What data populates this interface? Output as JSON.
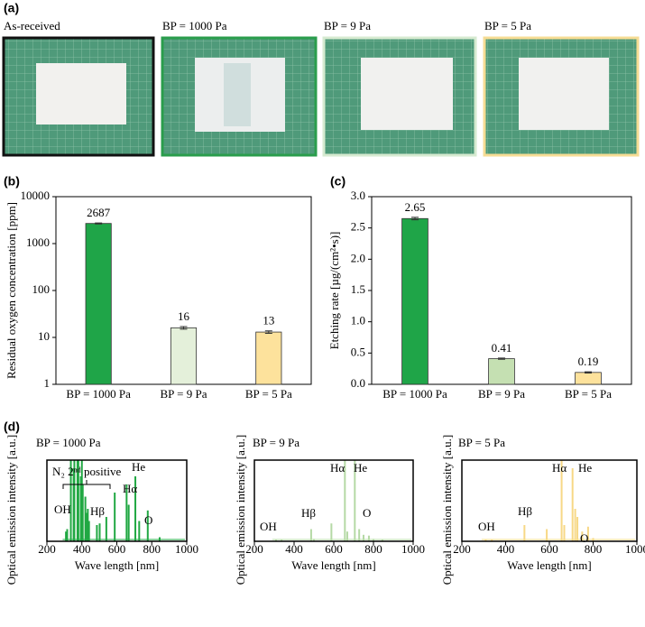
{
  "photos": {
    "panel_label": "(a)",
    "captions": [
      "As-received",
      "BP = 1000 Pa",
      "BP = 9 Pa",
      "BP = 5 Pa"
    ]
  },
  "chart_data": [
    {
      "type": "bar",
      "panel_label": "(b)",
      "y_label": "Residual oxygen concentration [ppm]",
      "categories": [
        "BP = 1000 Pa",
        "BP = 9 Pa",
        "BP = 5 Pa"
      ],
      "values": [
        2687,
        16,
        13
      ],
      "errors": [
        60,
        1,
        0.8
      ],
      "colors": [
        "#1fa548",
        "#e4f0da",
        "#fde29c"
      ],
      "log_scale": true,
      "ylim": [
        1,
        10000
      ],
      "yticks": [
        1,
        10,
        100,
        1000,
        10000
      ]
    },
    {
      "type": "bar",
      "panel_label": "(c)",
      "y_label": "Etching rate [µg/(cm²•s)]",
      "categories": [
        "BP = 1000 Pa",
        "BP = 9 Pa",
        "BP = 5 Pa"
      ],
      "values": [
        2.65,
        0.41,
        0.19
      ],
      "errors": [
        0.02,
        0.01,
        0.01
      ],
      "colors": [
        "#1fa548",
        "#c5e0b2",
        "#fde29c"
      ],
      "log_scale": false,
      "ylim": [
        0,
        3
      ],
      "yticks": [
        {
          "value": 0,
          "label": "0.0"
        },
        0.5,
        {
          "value": 1,
          "label": "1.0"
        },
        1.5,
        {
          "value": 2,
          "label": "2.0"
        },
        2.5,
        {
          "value": 3,
          "label": "3.0"
        }
      ]
    },
    {
      "type": "spectrum",
      "panel_label": "(d)",
      "title": "BP = 1000 Pa",
      "x_label": "Wave length [nm]",
      "y_label": "Optical emission intensity [a.u.]",
      "color": "#21a843",
      "annotations": [
        "OH",
        "N₂ 2ⁿᵈ positive",
        "Hβ",
        "Hα",
        "He",
        "O"
      ],
      "x": [
        309,
        316,
        337,
        353,
        357,
        375,
        380,
        394,
        400,
        405,
        420,
        427,
        434,
        441,
        486,
        502,
        540,
        588,
        656,
        668,
        706,
        728,
        777,
        845
      ],
      "values": [
        0.12,
        0.15,
        1.0,
        0.9,
        1.0,
        1.0,
        1.0,
        0.8,
        1.0,
        0.7,
        0.55,
        0.35,
        0.4,
        0.25,
        0.2,
        0.22,
        0.3,
        0.6,
        0.7,
        0.45,
        0.8,
        0.25,
        0.38,
        0.05
      ],
      "xlim": [
        200,
        1000
      ],
      "xticks": [
        200,
        400,
        600,
        800,
        1000
      ],
      "ylim": [
        0,
        1
      ]
    },
    {
      "type": "spectrum",
      "title": "BP = 9 Pa",
      "x_label": "Wave length [nm]",
      "y_label": "Optical emission intensity [a.u.]",
      "color": "#b5d9a5",
      "annotations": [
        "Hα",
        "He",
        "Hβ",
        "O",
        "OH"
      ],
      "x": [
        309,
        337,
        486,
        500,
        588,
        656,
        668,
        706,
        728,
        750,
        777,
        800,
        845
      ],
      "values": [
        0.02,
        0.02,
        0.15,
        0.03,
        0.22,
        1.0,
        0.12,
        1.0,
        0.15,
        0.08,
        0.07,
        0.03,
        0.02
      ],
      "xlim": [
        200,
        1000
      ],
      "xticks": [
        200,
        400,
        600,
        800,
        1000
      ],
      "ylim": [
        0,
        1
      ]
    },
    {
      "type": "spectrum",
      "title": "BP = 5 Pa",
      "x_label": "Wave length [nm]",
      "y_label": "Optical emission intensity [a.u.]",
      "color": "#f7d886",
      "annotations": [
        "Hα",
        "He",
        "Hβ",
        "O",
        "OH"
      ],
      "x": [
        309,
        337,
        486,
        588,
        656,
        668,
        706,
        718,
        728,
        750,
        777,
        800
      ],
      "values": [
        0.02,
        0.02,
        0.2,
        0.15,
        1.0,
        0.2,
        0.9,
        0.4,
        0.3,
        0.12,
        0.18,
        0.04
      ],
      "xlim": [
        200,
        1000
      ],
      "xticks": [
        200,
        400,
        600,
        800,
        1000
      ],
      "ylim": [
        0,
        1
      ]
    }
  ]
}
